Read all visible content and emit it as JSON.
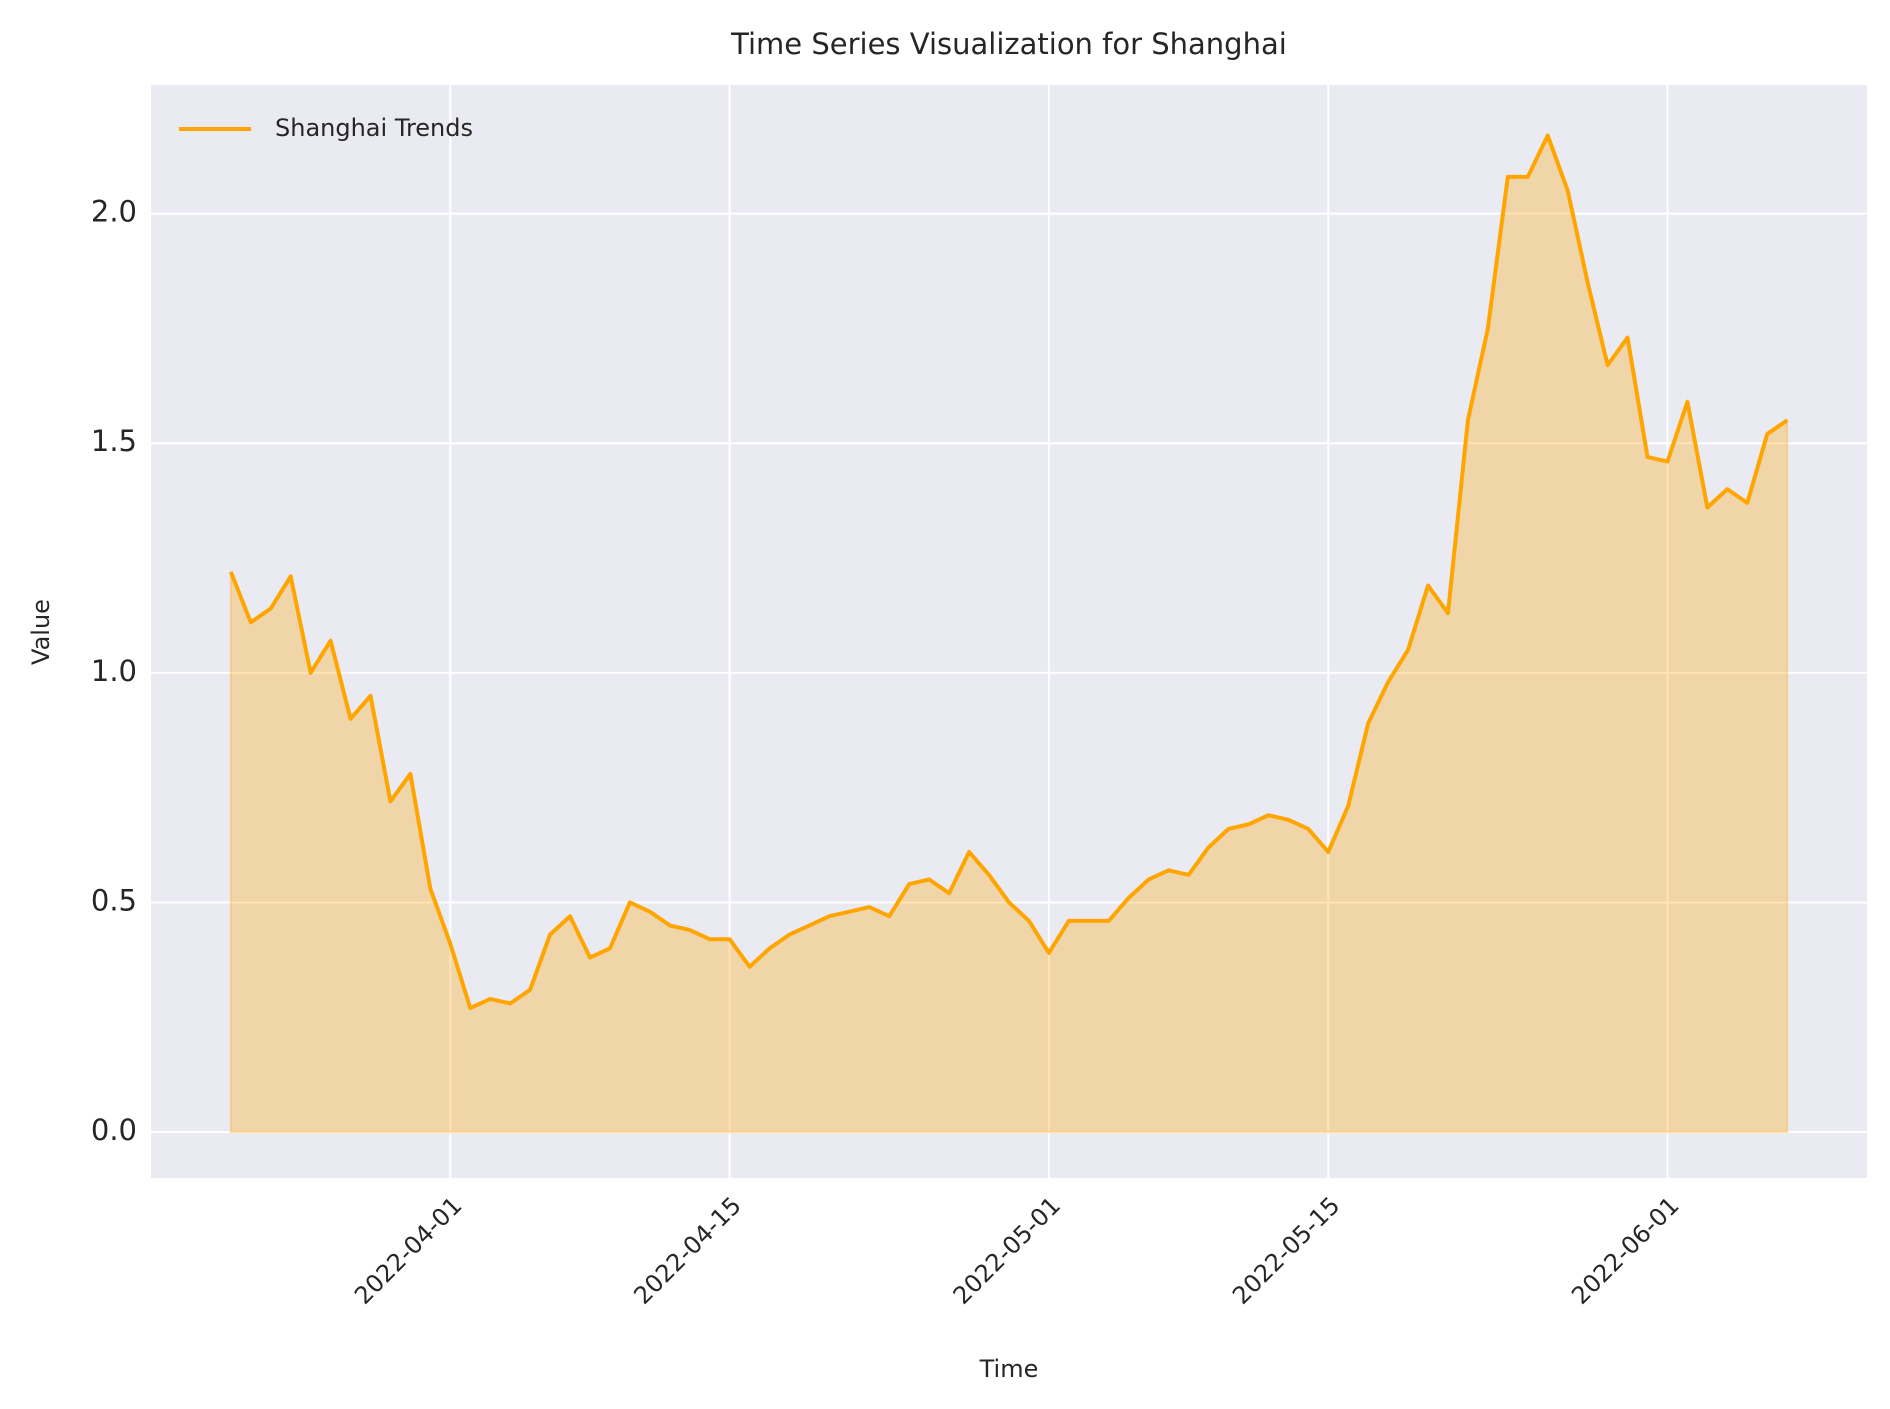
{
  "chart_data": {
    "type": "area",
    "title": "Time Series Visualization for Shanghai",
    "xlabel": "Time",
    "ylabel": "Value",
    "x": [
      "2022-03-21",
      "2022-03-22",
      "2022-03-23",
      "2022-03-24",
      "2022-03-25",
      "2022-03-26",
      "2022-03-27",
      "2022-03-28",
      "2022-03-29",
      "2022-03-30",
      "2022-03-31",
      "2022-04-01",
      "2022-04-02",
      "2022-04-03",
      "2022-04-04",
      "2022-04-05",
      "2022-04-06",
      "2022-04-07",
      "2022-04-08",
      "2022-04-09",
      "2022-04-10",
      "2022-04-11",
      "2022-04-12",
      "2022-04-13",
      "2022-04-14",
      "2022-04-15",
      "2022-04-16",
      "2022-04-17",
      "2022-04-18",
      "2022-04-19",
      "2022-04-20",
      "2022-04-21",
      "2022-04-22",
      "2022-04-23",
      "2022-04-24",
      "2022-04-25",
      "2022-04-26",
      "2022-04-27",
      "2022-04-28",
      "2022-04-29",
      "2022-04-30",
      "2022-05-01",
      "2022-05-02",
      "2022-05-03",
      "2022-05-04",
      "2022-05-05",
      "2022-05-06",
      "2022-05-07",
      "2022-05-08",
      "2022-05-09",
      "2022-05-10",
      "2022-05-11",
      "2022-05-12",
      "2022-05-13",
      "2022-05-14",
      "2022-05-15",
      "2022-05-16",
      "2022-05-17",
      "2022-05-18",
      "2022-05-19",
      "2022-05-20",
      "2022-05-21",
      "2022-05-22",
      "2022-05-23",
      "2022-05-24",
      "2022-05-25",
      "2022-05-26",
      "2022-05-27",
      "2022-05-28",
      "2022-05-29",
      "2022-05-30",
      "2022-05-31",
      "2022-06-01",
      "2022-06-02",
      "2022-06-03",
      "2022-06-04",
      "2022-06-05",
      "2022-06-06",
      "2022-06-07"
    ],
    "series": [
      {
        "name": "Shanghai Trends",
        "color": "#ffa500",
        "values": [
          1.22,
          1.11,
          1.14,
          1.21,
          1.0,
          1.07,
          0.9,
          0.95,
          0.72,
          0.78,
          0.53,
          0.41,
          0.27,
          0.29,
          0.28,
          0.31,
          0.43,
          0.47,
          0.38,
          0.4,
          0.5,
          0.48,
          0.45,
          0.44,
          0.42,
          0.42,
          0.36,
          0.4,
          0.43,
          0.45,
          0.47,
          0.48,
          0.49,
          0.47,
          0.54,
          0.55,
          0.52,
          0.61,
          0.56,
          0.5,
          0.46,
          0.39,
          0.46,
          0.46,
          0.46,
          0.51,
          0.55,
          0.57,
          0.56,
          0.62,
          0.66,
          0.67,
          0.69,
          0.68,
          0.66,
          0.61,
          0.71,
          0.89,
          0.98,
          1.05,
          1.19,
          1.13,
          1.55,
          1.75,
          2.08,
          2.08,
          2.17,
          2.05,
          1.85,
          1.67,
          1.73,
          1.47,
          1.46,
          1.59,
          1.36,
          1.4,
          1.37,
          1.52,
          1.55
        ]
      }
    ],
    "xlim": [
      "2022-03-17",
      "2022-06-11"
    ],
    "xticks": [
      "2022-04-01",
      "2022-04-15",
      "2022-05-01",
      "2022-05-15",
      "2022-06-01"
    ],
    "ylim": [
      -0.1,
      2.28
    ],
    "yticks": [
      {
        "value": 0,
        "label": "0.0"
      },
      {
        "value": 0.5,
        "label": "0.5"
      },
      {
        "value": 1,
        "label": "1.0"
      },
      {
        "value": 1.5,
        "label": "1.5"
      },
      {
        "value": 2,
        "label": "2.0"
      }
    ],
    "grid": true,
    "legend": "upper left"
  }
}
